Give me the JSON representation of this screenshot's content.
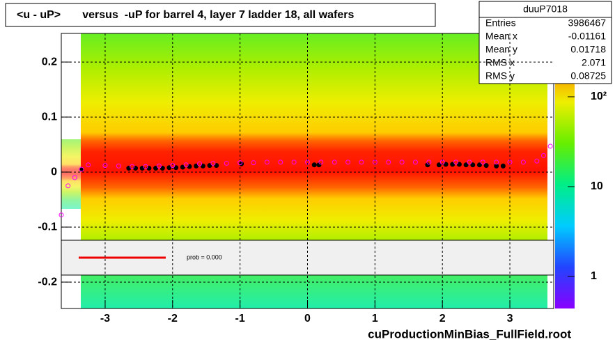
{
  "chart_data": {
    "type": "profile2d",
    "title": "<u - uP>       versus  -uP for barrel 4, layer 7 ladder 18, all wafers",
    "footer": "cuProductionMinBias_FullField.root",
    "xlim": [
      -3.65,
      3.65
    ],
    "xticks": [
      -3,
      -2,
      -1,
      0,
      1,
      2,
      3
    ],
    "ylim": [
      -0.248,
      0.252
    ],
    "yticks": [
      0.2,
      0.1,
      0,
      -0.1,
      -0.2
    ],
    "grid": true,
    "zlog": true,
    "zlim": [
      0.44,
      507
    ],
    "zticks": [
      {
        "value": 1,
        "label": "1"
      },
      {
        "value": 10,
        "label": "10"
      },
      {
        "value": 100,
        "label": "10²"
      }
    ],
    "legend_text": "prob = 0.000",
    "stats": {
      "title": "duuP7018",
      "rows": [
        [
          "Entries",
          "3986467"
        ],
        [
          "Mean x",
          "-0.01161"
        ],
        [
          "Mean y",
          "0.01718"
        ],
        [
          "RMS x",
          "2.071"
        ],
        [
          "RMS y",
          "0.08725"
        ]
      ]
    },
    "series": [
      {
        "color": "#000000",
        "marker": "filled",
        "x": [
          -3.35,
          -2.65,
          -2.55,
          -2.45,
          -2.35,
          -2.25,
          -2.15,
          -2.05,
          -1.95,
          -1.85,
          -1.75,
          -1.65,
          -1.55,
          -1.45,
          -1.35,
          -0.98,
          0.1,
          0.17,
          1.78,
          1.95,
          2.05,
          2.15,
          2.25,
          2.35,
          2.45,
          2.55,
          2.65,
          2.8,
          2.9
        ],
        "values": [
          0.005,
          0.007,
          0.007,
          0.007,
          0.007,
          0.007,
          0.007,
          0.008,
          0.008,
          0.009,
          0.01,
          0.011,
          0.011,
          0.012,
          0.012,
          0.015,
          0.013,
          0.013,
          0.013,
          0.013,
          0.014,
          0.014,
          0.014,
          0.013,
          0.013,
          0.013,
          0.012,
          0.011,
          0.011
        ]
      },
      {
        "color": "#ff00ff",
        "marker": "open",
        "x": [
          -3.65,
          -3.55,
          -3.45,
          -3.35,
          -3.25,
          -3.0,
          -2.8,
          -2.6,
          -2.4,
          -2.2,
          -2.0,
          -1.8,
          -1.6,
          -1.4,
          -1.2,
          -1.0,
          -0.8,
          -0.6,
          -0.4,
          -0.2,
          0,
          0.2,
          0.4,
          0.6,
          0.8,
          1.0,
          1.2,
          1.4,
          1.6,
          1.8,
          2.0,
          2.2,
          2.4,
          2.6,
          2.8,
          3.0,
          3.2,
          3.4,
          3.5,
          3.6
        ],
        "values": [
          -0.078,
          -0.025,
          -0.01,
          0.005,
          0.013,
          0.012,
          0.011,
          0.01,
          0.01,
          0.011,
          0.012,
          0.013,
          0.015,
          0.016,
          0.016,
          0.017,
          0.017,
          0.018,
          0.018,
          0.018,
          0.018,
          0.018,
          0.018,
          0.018,
          0.018,
          0.018,
          0.018,
          0.018,
          0.018,
          0.018,
          0.018,
          0.018,
          0.018,
          0.018,
          0.018,
          0.018,
          0.018,
          0.02,
          0.03,
          0.047
        ]
      }
    ]
  }
}
